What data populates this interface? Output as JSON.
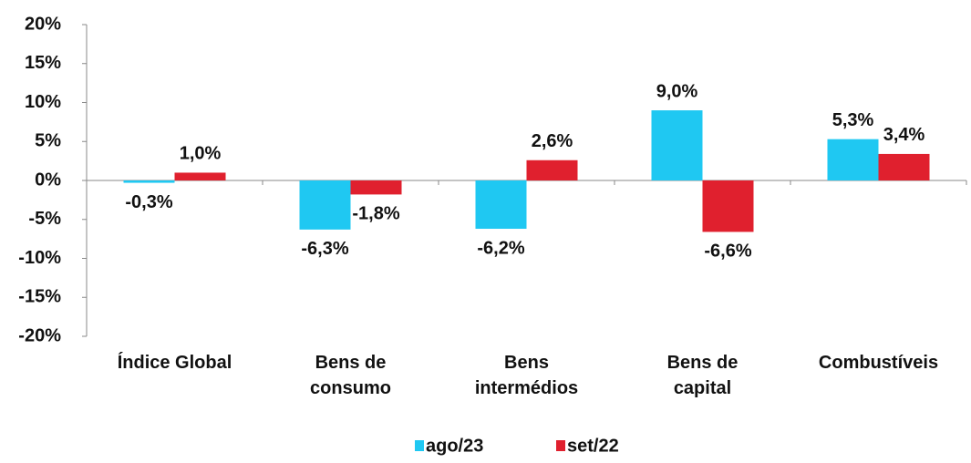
{
  "chart_data": {
    "type": "bar",
    "categories": [
      "Índice Global",
      "Bens de\nconsumo",
      "Bens\nintermédios",
      "Bens de\ncapital",
      "Combustíveis"
    ],
    "series": [
      {
        "name": "ago/23",
        "color": "#1fc8f2",
        "values": [
          -0.3,
          -6.3,
          -6.2,
          9.0,
          5.3
        ],
        "value_labels": [
          "-0,3%",
          "-6,3%",
          "-6,2%",
          "9,0%",
          "5,3%"
        ]
      },
      {
        "name": "set/22",
        "color": "#e0202e",
        "values": [
          1.0,
          -1.8,
          2.6,
          -6.6,
          3.4
        ],
        "value_labels": [
          "1,0%",
          "-1,8%",
          "2,6%",
          "-6,6%",
          "3,4%"
        ]
      }
    ],
    "ylim": [
      -20,
      20
    ],
    "yticks": [
      {
        "value": -20,
        "label": "-20%"
      },
      {
        "value": -15,
        "label": "-15%"
      },
      {
        "value": -10,
        "label": "-10%"
      },
      {
        "value": -5,
        "label": "-5%"
      },
      {
        "value": 0,
        "label": "0%"
      },
      {
        "value": 5,
        "label": "5%"
      },
      {
        "value": 10,
        "label": "10%"
      },
      {
        "value": 15,
        "label": "15%"
      },
      {
        "value": 20,
        "label": "20%"
      }
    ]
  }
}
